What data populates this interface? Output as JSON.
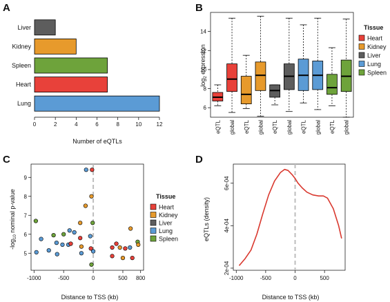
{
  "panels": {
    "A": "A",
    "B": "B",
    "C": "C",
    "D": "D"
  },
  "colors": {
    "Heart": "#e8413a",
    "Kidney": "#e79a2c",
    "Liver": "#5d5d5d",
    "Lung": "#5b9bd5",
    "Spleen": "#6ea33b",
    "density_line": "#d9382e",
    "dashed": "#bdbdbd"
  },
  "chart_data": [
    {
      "id": "A",
      "type": "bar",
      "orientation": "horizontal",
      "categories": [
        "Liver",
        "Kidney",
        "Spleen",
        "Heart",
        "Lung"
      ],
      "values": [
        2,
        4,
        7,
        7,
        12
      ],
      "xlabel": "Number of eQTLs",
      "xlim": [
        0,
        12
      ],
      "xticks": [
        "0",
        "2",
        "4",
        "6",
        "8",
        "10",
        "12"
      ]
    },
    {
      "id": "B",
      "type": "box",
      "ylabel": "log2 expression",
      "ylabel_main": "log",
      "ylabel_sub": "2",
      "ylabel_rest": " expression",
      "ylim": [
        5,
        16
      ],
      "yticks": [
        "6",
        "8",
        "10",
        "12",
        "14"
      ],
      "categories": [
        "eQTL",
        "global",
        "eQTL",
        "global",
        "eQTL",
        "global",
        "eQTL",
        "global",
        "eQTL",
        "global"
      ],
      "boxes": [
        {
          "tissue": "Heart",
          "min": 6.2,
          "q1": 6.7,
          "median": 7.1,
          "q3": 7.6,
          "max": 8.4
        },
        {
          "tissue": "Heart",
          "min": 5.5,
          "q1": 7.7,
          "median": 9.0,
          "q3": 10.6,
          "max": 15.4
        },
        {
          "tissue": "Kidney",
          "min": 5.9,
          "q1": 6.4,
          "median": 7.4,
          "q3": 9.3,
          "max": 11.5
        },
        {
          "tissue": "Kidney",
          "min": 5.1,
          "q1": 7.8,
          "median": 9.4,
          "q3": 10.8,
          "max": 15.6
        },
        {
          "tissue": "Liver",
          "min": 6.3,
          "q1": 7.1,
          "median": 7.8,
          "q3": 8.4,
          "max": 8.4
        },
        {
          "tissue": "Liver",
          "min": 5.6,
          "q1": 7.9,
          "median": 9.3,
          "q3": 10.6,
          "max": 15.4
        },
        {
          "tissue": "Lung",
          "min": 6.5,
          "q1": 7.8,
          "median": 9.4,
          "q3": 11.1,
          "max": 14.7
        },
        {
          "tissue": "Lung",
          "min": 5.8,
          "q1": 7.9,
          "median": 9.4,
          "q3": 10.9,
          "max": 15.4
        },
        {
          "tissue": "Spleen",
          "min": 6.2,
          "q1": 7.4,
          "median": 8.1,
          "q3": 9.5,
          "max": 12.3
        },
        {
          "tissue": "Spleen",
          "min": 5.0,
          "q1": 7.7,
          "median": 9.3,
          "q3": 11.0,
          "max": 15.3
        }
      ],
      "legend": {
        "title": "Tissue",
        "items": [
          "Heart",
          "Kidney",
          "Liver",
          "Lung",
          "Spleen"
        ],
        "position": "right"
      }
    },
    {
      "id": "C",
      "type": "scatter",
      "xlabel": "Distance to TSS (kb)",
      "ylabel": "-log10 nominal p-value",
      "ylabel_main": "-log",
      "ylabel_sub": "10",
      "ylabel_rest": " nominal p-value",
      "xlim": [
        -1050,
        850
      ],
      "ylim": [
        4.1,
        9.7
      ],
      "xticks": [
        "-1000",
        "-500",
        "0",
        "500",
        "800"
      ],
      "xtick_values": [
        -1000,
        -500,
        0,
        500,
        800
      ],
      "yticks": [
        "5",
        "6",
        "7",
        "8",
        "9"
      ],
      "vline": 0,
      "points": [
        {
          "x": -120,
          "y": 9.4,
          "tissue": "Lung"
        },
        {
          "x": -20,
          "y": 9.4,
          "tissue": "Heart"
        },
        {
          "x": -130,
          "y": 7.5,
          "tissue": "Kidney"
        },
        {
          "x": -30,
          "y": 8.0,
          "tissue": "Kidney"
        },
        {
          "x": -970,
          "y": 6.7,
          "tissue": "Spleen"
        },
        {
          "x": -220,
          "y": 6.6,
          "tissue": "Kidney"
        },
        {
          "x": -10,
          "y": 6.6,
          "tissue": "Spleen"
        },
        {
          "x": 630,
          "y": 6.3,
          "tissue": "Kidney"
        },
        {
          "x": -400,
          "y": 6.2,
          "tissue": "Lung"
        },
        {
          "x": -500,
          "y": 6.0,
          "tissue": "Spleen"
        },
        {
          "x": -320,
          "y": 6.1,
          "tissue": "Lung"
        },
        {
          "x": -670,
          "y": 5.95,
          "tissue": "Spleen"
        },
        {
          "x": -880,
          "y": 5.75,
          "tissue": "Lung"
        },
        {
          "x": -620,
          "y": 5.55,
          "tissue": "Lung"
        },
        {
          "x": -420,
          "y": 5.45,
          "tissue": "Lung"
        },
        {
          "x": -520,
          "y": 5.45,
          "tissue": "Lung"
        },
        {
          "x": -380,
          "y": 5.5,
          "tissue": "Heart"
        },
        {
          "x": -220,
          "y": 5.8,
          "tissue": "Heart"
        },
        {
          "x": -50,
          "y": 5.9,
          "tissue": "Lung"
        },
        {
          "x": -200,
          "y": 5.35,
          "tissue": "Kidney"
        },
        {
          "x": -40,
          "y": 5.25,
          "tissue": "Heart"
        },
        {
          "x": 0,
          "y": 5.1,
          "tissue": "Lung"
        },
        {
          "x": 320,
          "y": 5.3,
          "tissue": "Heart"
        },
        {
          "x": 390,
          "y": 5.5,
          "tissue": "Heart"
        },
        {
          "x": 450,
          "y": 5.3,
          "tissue": "Kidney"
        },
        {
          "x": 540,
          "y": 5.25,
          "tissue": "Heart"
        },
        {
          "x": 620,
          "y": 5.3,
          "tissue": "Lung"
        },
        {
          "x": 750,
          "y": 5.6,
          "tissue": "Spleen"
        },
        {
          "x": 760,
          "y": 5.45,
          "tissue": "Kidney"
        },
        {
          "x": -960,
          "y": 5.05,
          "tissue": "Lung"
        },
        {
          "x": -750,
          "y": 5.15,
          "tissue": "Lung"
        },
        {
          "x": -610,
          "y": 4.95,
          "tissue": "Lung"
        },
        {
          "x": -200,
          "y": 5.0,
          "tissue": "Lung"
        },
        {
          "x": 320,
          "y": 4.85,
          "tissue": "Heart"
        },
        {
          "x": 500,
          "y": 4.75,
          "tissue": "Kidney"
        },
        {
          "x": 660,
          "y": 4.75,
          "tissue": "Heart"
        },
        {
          "x": -30,
          "y": 4.4,
          "tissue": "Spleen"
        }
      ],
      "legend": {
        "title": "Tissue",
        "items": [
          "Heart",
          "Kidney",
          "Liver",
          "Lung",
          "Spleen"
        ],
        "position": "right"
      }
    },
    {
      "id": "D",
      "type": "line",
      "xlabel": "Distance to TSS (kb)",
      "ylabel": "eQTLs (density)",
      "xlim": [
        -1050,
        850
      ],
      "ylim": [
        0.00019,
        0.00069
      ],
      "xticks": [
        "-1000",
        "-500",
        "0",
        "500"
      ],
      "xtick_values": [
        -1000,
        -500,
        0,
        500
      ],
      "yticks": [
        "2e-04",
        "4e-04",
        "6e-04"
      ],
      "ytick_values": [
        0.0002,
        0.0004,
        0.0006
      ],
      "vline": 0,
      "x": [
        -950,
        -850,
        -750,
        -650,
        -550,
        -450,
        -350,
        -250,
        -180,
        -120,
        -50,
        0,
        50,
        120,
        200,
        300,
        400,
        480,
        550,
        650,
        740,
        790
      ],
      "y": [
        0.000212,
        0.000245,
        0.000285,
        0.00036,
        0.000455,
        0.000545,
        0.00061,
        0.00065,
        0.000665,
        0.00066,
        0.00064,
        0.000622,
        0.0006,
        0.000578,
        0.000558,
        0.000545,
        0.00054,
        0.00054,
        0.00053,
        0.00048,
        0.0004,
        0.00034
      ]
    }
  ]
}
